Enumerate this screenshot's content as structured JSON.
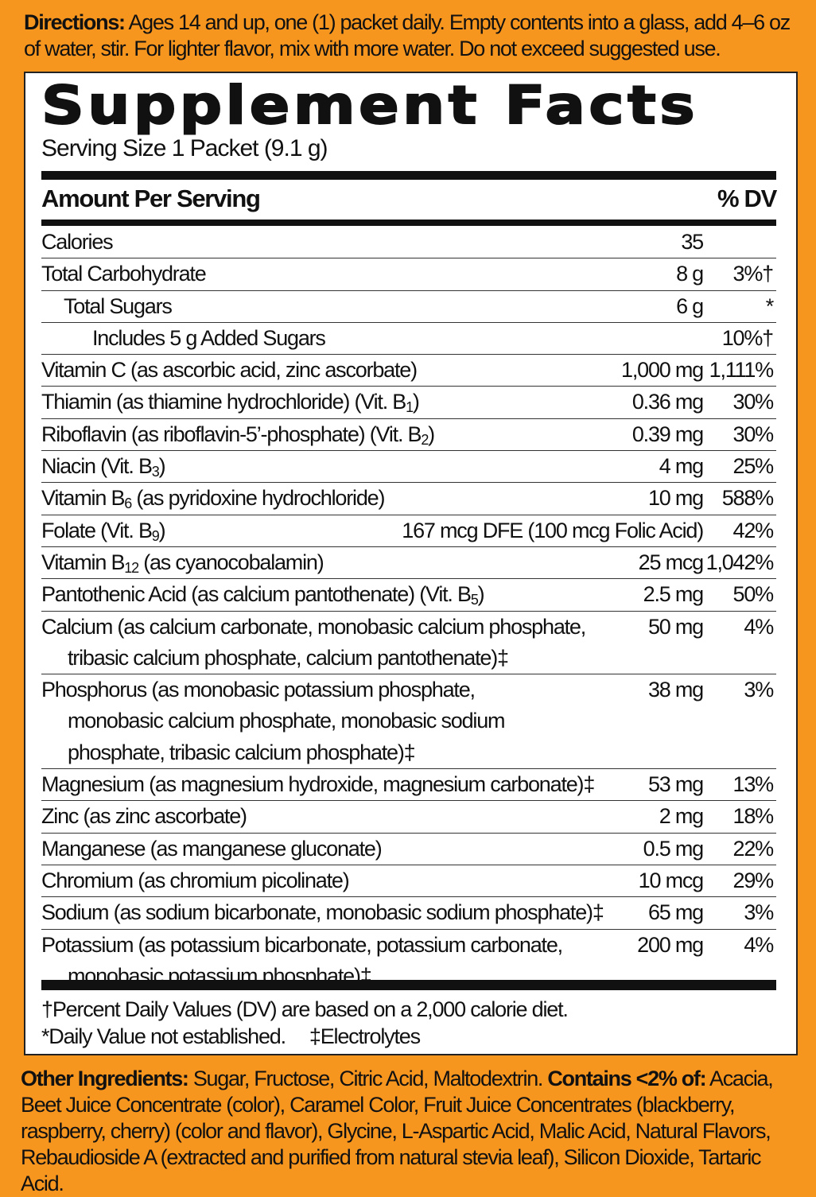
{
  "colors": {
    "background": "#f7961f",
    "panel": "#ffffff",
    "text": "#111111"
  },
  "directions": {
    "label": "Directions:",
    "text": " Ages 14 and up, one (1) packet daily. Empty contents into a glass, add 4–6 oz of water, stir. For lighter flavor, mix with more water. Do not exceed suggested use."
  },
  "facts": {
    "title": "Supplement Facts",
    "serving": "Serving Size 1 Packet (9.1 g)",
    "header_amount": "Amount Per Serving",
    "header_dv": "% DV",
    "rows": [
      {
        "pre": "Calories",
        "amount": "35",
        "dv": ""
      },
      {
        "pre": "Total Carbohydrate",
        "amount": "8 g",
        "dv": "3%†"
      },
      {
        "pre": "Total Sugars",
        "amount": "6 g",
        "dv": "*",
        "indent": 1
      },
      {
        "pre": "Includes 5 g Added Sugars",
        "amount": "",
        "dv": "10%†",
        "indent": 2
      },
      {
        "pre": "Vitamin C (as ascorbic acid, zinc ascorbate)",
        "amount": "1,000 mg",
        "dv": "1,111%"
      },
      {
        "pre": "Thiamin (as thiamine hydrochloride) (Vit. B",
        "sub": "1",
        "post": ")",
        "amount": "0.36 mg",
        "dv": "30%"
      },
      {
        "pre": "Riboflavin (as riboflavin-5’-phosphate) (Vit. B",
        "sub": "2",
        "post": ")",
        "amount": "0.39 mg",
        "dv": "30%"
      },
      {
        "pre": "Niacin (Vit. B",
        "sub": "3",
        "post": ")",
        "amount": "4 mg",
        "dv": "25%"
      },
      {
        "pre": "Vitamin B",
        "sub": "6",
        "post": " (as pyridoxine hydrochloride)",
        "amount": "10 mg",
        "dv": "588%"
      },
      {
        "pre": "Folate (Vit. B",
        "sub": "9",
        "post": ")",
        "amount": "167 mcg DFE (100 mcg Folic Acid)",
        "dv": "42%"
      },
      {
        "pre": "Vitamin B",
        "sub": "12",
        "post": " (as cyanocobalamin)",
        "amount": "25 mcg",
        "dv": "1,042%"
      },
      {
        "pre": "Pantothenic Acid (as calcium pantothenate) (Vit. B",
        "sub": "5",
        "post": ")",
        "amount": "2.5 mg",
        "dv": "50%"
      },
      {
        "pre": "Calcium (as calcium carbonate, monobasic calcium phosphate,",
        "cont": [
          "tribasic calcium phosphate, calcium pantothenate)‡"
        ],
        "amount": "50 mg",
        "dv": "4%"
      },
      {
        "pre": "Phosphorus (as monobasic potassium phosphate,",
        "cont": [
          "monobasic calcium phosphate, monobasic sodium",
          "phosphate, tribasic calcium phosphate)‡"
        ],
        "amount": "38 mg",
        "dv": "3%"
      },
      {
        "pre": "Magnesium (as magnesium hydroxide, magnesium carbonate)‡",
        "amount": "53 mg",
        "dv": "13%"
      },
      {
        "pre": "Zinc (as zinc ascorbate)",
        "amount": "2 mg",
        "dv": "18%"
      },
      {
        "pre": "Manganese (as manganese gluconate)",
        "amount": "0.5 mg",
        "dv": "22%"
      },
      {
        "pre": "Chromium (as chromium picolinate)",
        "amount": "10 mcg",
        "dv": "29%"
      },
      {
        "pre": "Sodium (as sodium bicarbonate, monobasic sodium phosphate)‡",
        "amount": "65 mg",
        "dv": "3%"
      },
      {
        "pre": "Potassium (as potassium bicarbonate, potassium carbonate,",
        "cont": [
          "monobasic potassium phosphate)‡"
        ],
        "amount": "200 mg",
        "dv": "4%"
      }
    ],
    "footnote1": "†Percent Daily Values (DV) are based on a 2,000 calorie diet.",
    "footnote2": "*Daily Value not established.",
    "footnote3": "‡Electrolytes"
  },
  "other": {
    "label": "Other Ingredients:",
    "text1": " Sugar, Fructose, Citric Acid, Maltodextrin. ",
    "label2": "Contains <2% of:",
    "text2": " Acacia, Beet Juice Concentrate (color), Caramel Color, Fruit Juice Concentrates (blackberry, raspberry, cherry) (color and flavor), Glycine, L-Aspartic Acid, Malic Acid, Natural Flavors, Rebaudioside A (extracted and purified from natural stevia leaf), Silicon Dioxide, Tartaric Acid."
  }
}
